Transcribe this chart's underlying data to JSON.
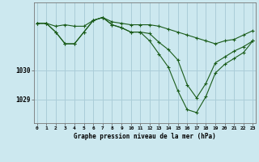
{
  "title": "Graphe pression niveau de la mer (hPa)",
  "background_color": "#cce8ef",
  "grid_color": "#aacdd8",
  "line_color": "#1a5c1a",
  "x_labels": [
    "0",
    "1",
    "2",
    "3",
    "4",
    "5",
    "6",
    "7",
    "8",
    "9",
    "10",
    "11",
    "12",
    "13",
    "14",
    "15",
    "16",
    "17",
    "18",
    "19",
    "20",
    "21",
    "22",
    "23"
  ],
  "yticks": [
    1029,
    1030
  ],
  "ylim": [
    1028.2,
    1032.3
  ],
  "xlim": [
    -0.3,
    23.3
  ],
  "series": [
    [
      1031.6,
      1031.6,
      1031.5,
      1031.55,
      1031.5,
      1031.5,
      1031.7,
      1031.8,
      1031.65,
      1031.6,
      1031.55,
      1031.55,
      1031.55,
      1031.5,
      1031.4,
      1031.3,
      1031.2,
      1031.1,
      1031.0,
      1030.9,
      1031.0,
      1031.05,
      1031.2,
      1031.35
    ],
    [
      1031.6,
      1031.6,
      1031.3,
      1030.9,
      1030.9,
      1031.3,
      1031.7,
      1031.8,
      1031.55,
      1031.45,
      1031.3,
      1031.3,
      1031.25,
      1030.95,
      1030.7,
      1030.35,
      1029.5,
      1029.05,
      1029.55,
      1030.25,
      1030.45,
      1030.65,
      1030.8,
      1031.0
    ],
    [
      1031.6,
      1031.6,
      1031.3,
      1030.9,
      1030.9,
      1031.3,
      1031.7,
      1031.8,
      1031.55,
      1031.45,
      1031.3,
      1031.3,
      1031.0,
      1030.55,
      1030.1,
      1029.3,
      1028.65,
      1028.55,
      1029.1,
      1029.9,
      1030.2,
      1030.4,
      1030.6,
      1031.0
    ]
  ]
}
